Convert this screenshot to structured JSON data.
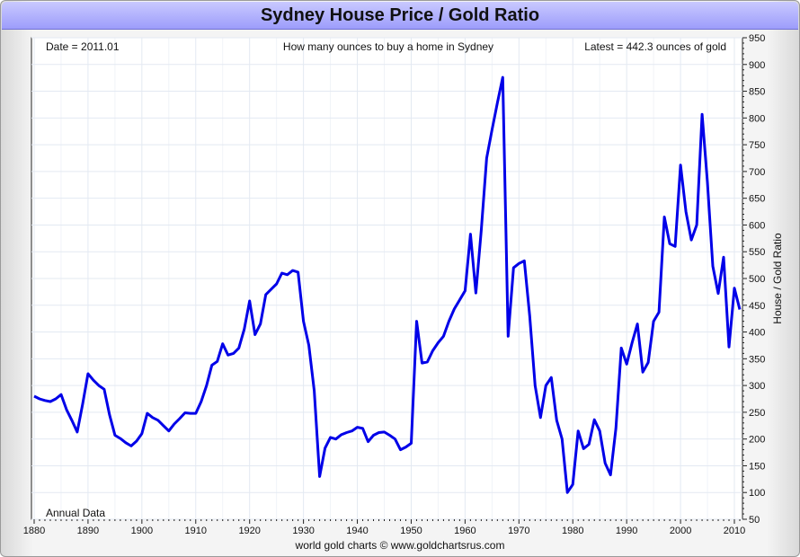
{
  "chart_data": {
    "type": "line",
    "title": "Sydney House Price / Gold Ratio",
    "subtitle": "How many ounces to buy a home in Sydney",
    "date_note": "Date = 2011.01",
    "latest_note": "Latest = 442.3 ounces of gold",
    "frequency_note": "Annual Data",
    "credit": "world gold charts © www.goldchartsrus.com",
    "ylabel": "House / Gold Ratio",
    "xlim": [
      1879.5,
      2011.5
    ],
    "ylim": [
      50,
      950
    ],
    "x_ticks": [
      1880,
      1890,
      1900,
      1910,
      1920,
      1930,
      1940,
      1950,
      1960,
      1970,
      1980,
      1990,
      2000,
      2010
    ],
    "y_ticks": [
      50,
      100,
      150,
      200,
      250,
      300,
      350,
      400,
      450,
      500,
      550,
      600,
      650,
      700,
      750,
      800,
      850,
      900,
      950
    ],
    "grid": true,
    "line_color": "#0000e8",
    "series": [
      {
        "name": "",
        "x": [
          1880,
          1881,
          1882,
          1883,
          1884,
          1885,
          1886,
          1887,
          1888,
          1889,
          1890,
          1891,
          1892,
          1893,
          1894,
          1895,
          1896,
          1897,
          1898,
          1899,
          1900,
          1901,
          1902,
          1903,
          1904,
          1905,
          1906,
          1907,
          1908,
          1909,
          1910,
          1911,
          1912,
          1913,
          1914,
          1915,
          1916,
          1917,
          1918,
          1919,
          1920,
          1921,
          1922,
          1923,
          1924,
          1925,
          1926,
          1927,
          1928,
          1929,
          1930,
          1931,
          1932,
          1933,
          1934,
          1935,
          1936,
          1937,
          1938,
          1939,
          1940,
          1941,
          1942,
          1943,
          1944,
          1945,
          1946,
          1947,
          1948,
          1949,
          1950,
          1951,
          1952,
          1953,
          1954,
          1955,
          1956,
          1957,
          1958,
          1959,
          1960,
          1961,
          1962,
          1963,
          1964,
          1965,
          1966,
          1967,
          1968,
          1969,
          1970,
          1971,
          1972,
          1973,
          1974,
          1975,
          1976,
          1977,
          1978,
          1979,
          1980,
          1981,
          1982,
          1983,
          1984,
          1985,
          1986,
          1987,
          1988,
          1989,
          1990,
          1991,
          1992,
          1993,
          1994,
          1995,
          1996,
          1997,
          1998,
          1999,
          2000,
          2001,
          2002,
          2003,
          2004,
          2005,
          2006,
          2007,
          2008,
          2009,
          2010,
          2011
        ],
        "values": [
          280,
          275,
          272,
          270,
          275,
          283,
          255,
          235,
          213,
          265,
          322,
          310,
          300,
          293,
          245,
          207,
          201,
          193,
          187,
          196,
          210,
          248,
          240,
          235,
          225,
          215,
          228,
          238,
          249,
          248,
          248,
          270,
          300,
          338,
          345,
          378,
          357,
          360,
          370,
          405,
          458,
          395,
          415,
          470,
          480,
          490,
          510,
          507,
          515,
          512,
          420,
          375,
          290,
          130,
          183,
          203,
          200,
          208,
          212,
          215,
          222,
          220,
          195,
          207,
          212,
          213,
          207,
          200,
          180,
          185,
          192,
          420,
          342,
          344,
          365,
          380,
          392,
          420,
          443,
          460,
          477,
          583,
          473,
          590,
          725,
          778,
          828,
          876,
          392,
          520,
          528,
          533,
          430,
          300,
          240,
          300,
          315,
          235,
          200,
          100,
          115,
          215,
          182,
          190,
          236,
          215,
          155,
          133,
          220,
          370,
          340,
          380,
          415,
          325,
          343,
          420,
          437,
          615,
          565,
          560,
          712,
          625,
          572,
          600,
          807,
          680,
          523,
          472,
          540,
          372,
          482,
          442
        ]
      }
    ]
  }
}
